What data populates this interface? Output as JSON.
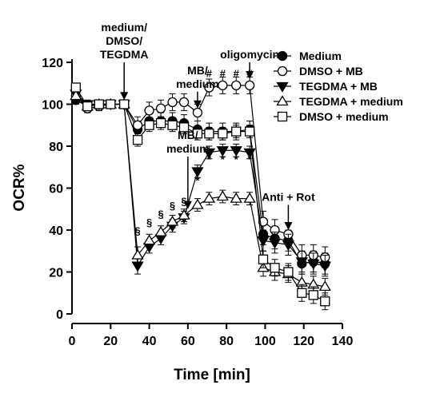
{
  "chart_data": {
    "type": "line",
    "xlabel": "Time [min]",
    "ylabel": "OCR%",
    "xlim": [
      0,
      140
    ],
    "ylim": [
      0,
      120
    ],
    "xticks": [
      0,
      20,
      40,
      60,
      80,
      100,
      120,
      140
    ],
    "yticks": [
      0,
      20,
      40,
      60,
      80,
      100,
      120
    ],
    "grid": false,
    "legend_position": "top-right",
    "series": [
      {
        "name": "Medium",
        "marker": "circle-filled",
        "x": [
          2,
          8,
          14,
          20,
          27,
          34,
          40,
          46,
          52,
          58,
          65,
          71,
          78,
          85,
          92,
          99,
          105,
          112,
          119,
          125,
          131
        ],
        "y": [
          102,
          99,
          100,
          100,
          100,
          88,
          92,
          92,
          92,
          91,
          88,
          87,
          87,
          87,
          88,
          38,
          36,
          35,
          24,
          25,
          24
        ],
        "err": [
          2,
          2,
          2,
          2,
          2,
          4,
          4,
          4,
          4,
          4,
          4,
          4,
          4,
          4,
          4,
          5,
          5,
          5,
          5,
          5,
          5
        ]
      },
      {
        "name": "DMSO + MB",
        "marker": "circle-open",
        "x": [
          2,
          8,
          14,
          20,
          27,
          34,
          40,
          46,
          52,
          58,
          65,
          71,
          78,
          85,
          92,
          99,
          105,
          112,
          119,
          125,
          131
        ],
        "y": [
          104,
          98,
          99,
          100,
          100,
          90,
          97,
          98,
          101,
          101,
          96,
          108,
          109,
          109,
          109,
          44,
          40,
          38,
          28,
          28,
          27
        ],
        "err": [
          2,
          2,
          2,
          2,
          2,
          4,
          4,
          4,
          4,
          4,
          4,
          4,
          4,
          4,
          4,
          5,
          5,
          5,
          5,
          5,
          5
        ]
      },
      {
        "name": "TEGDMA + MB",
        "marker": "triangle-down-filled",
        "x": [
          2,
          8,
          14,
          20,
          27,
          34,
          40,
          46,
          52,
          58,
          65,
          71,
          78,
          85,
          92,
          99,
          105,
          112,
          119,
          125,
          131
        ],
        "y": [
          105,
          100,
          100,
          100,
          100,
          23,
          32,
          36,
          42,
          46,
          68,
          77,
          78,
          78,
          77,
          35,
          34,
          33,
          25,
          24,
          23
        ],
        "err": [
          2,
          2,
          2,
          2,
          2,
          4,
          3,
          3,
          3,
          3,
          3,
          3,
          3,
          3,
          3,
          5,
          5,
          5,
          5,
          5,
          5
        ]
      },
      {
        "name": "TEGDMA + medium",
        "marker": "triangle-up-open",
        "x": [
          2,
          8,
          14,
          20,
          27,
          34,
          40,
          46,
          52,
          58,
          65,
          71,
          78,
          85,
          92,
          99,
          105,
          112,
          119,
          125,
          131
        ],
        "y": [
          104,
          99,
          100,
          100,
          100,
          28,
          35,
          39,
          44,
          47,
          52,
          55,
          56,
          55,
          55,
          22,
          20,
          19,
          15,
          14,
          13
        ],
        "err": [
          2,
          2,
          2,
          2,
          2,
          4,
          3,
          3,
          3,
          3,
          3,
          3,
          3,
          3,
          3,
          4,
          4,
          4,
          4,
          4,
          4
        ]
      },
      {
        "name": "DMSO + medium",
        "marker": "square-open",
        "x": [
          2,
          8,
          14,
          20,
          27,
          34,
          40,
          46,
          52,
          58,
          65,
          71,
          78,
          85,
          92,
          99,
          105,
          112,
          119,
          125,
          131
        ],
        "y": [
          108,
          99,
          100,
          100,
          100,
          83,
          90,
          91,
          90,
          89,
          86,
          86,
          86,
          87,
          87,
          26,
          22,
          20,
          10,
          9,
          6
        ],
        "err": [
          2,
          2,
          2,
          2,
          2,
          3,
          3,
          3,
          3,
          3,
          3,
          3,
          3,
          3,
          3,
          4,
          4,
          4,
          4,
          4,
          4
        ]
      }
    ],
    "annotations": [
      {
        "text": "medium/\nDMSO/\nTEGDMA",
        "arrow_x": 27,
        "arrow_from_y": 120,
        "arrow_to_y": 102
      },
      {
        "text": "MB/\nmedium",
        "arrow_x": 65,
        "arrow_from_y": 106,
        "arrow_to_y": 98
      },
      {
        "text": "oligomycin",
        "arrow_x": 92,
        "arrow_from_y": 120,
        "arrow_to_y": 112
      },
      {
        "text": "MB/\nmedium",
        "arrow_x": 60,
        "arrow_from_y": 75,
        "arrow_to_y": 50
      },
      {
        "text": "Anti + Rot",
        "arrow_x": 112,
        "arrow_from_y": 52,
        "arrow_to_y": 40
      }
    ],
    "significance_marks": [
      {
        "text": "#",
        "x": 71,
        "y": 113
      },
      {
        "text": "#",
        "x": 78,
        "y": 113
      },
      {
        "text": "#",
        "x": 85,
        "y": 113
      },
      {
        "text": "#",
        "x": 92,
        "y": 113
      },
      {
        "text": "*",
        "x": 65,
        "y": 62
      },
      {
        "text": "*",
        "x": 71,
        "y": 72
      },
      {
        "text": "*",
        "x": 78,
        "y": 72
      },
      {
        "text": "*",
        "x": 85,
        "y": 72
      },
      {
        "text": "*",
        "x": 92,
        "y": 72
      },
      {
        "text": "§",
        "x": 34,
        "y": 38
      },
      {
        "text": "§",
        "x": 40,
        "y": 42
      },
      {
        "text": "§",
        "x": 46,
        "y": 46
      },
      {
        "text": "§",
        "x": 52,
        "y": 50
      },
      {
        "text": "§",
        "x": 58,
        "y": 52
      }
    ]
  }
}
